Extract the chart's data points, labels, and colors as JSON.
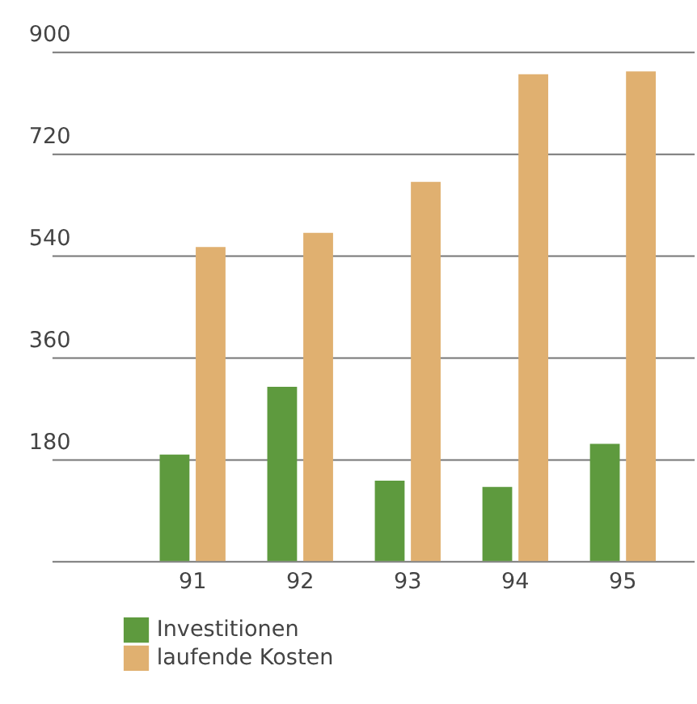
{
  "chart_data": {
    "type": "bar",
    "categories": [
      "91",
      "92",
      "93",
      "94",
      "95"
    ],
    "series": [
      {
        "name": "Investitionen",
        "color": "#5e9a3e",
        "values": [
          188,
          308,
          142,
          131,
          207
        ]
      },
      {
        "name": "laufende Kosten",
        "color": "#e0b070",
        "values": [
          555,
          580,
          670,
          860,
          865
        ]
      }
    ],
    "ylim": [
      0,
      900
    ],
    "yticks": [
      180,
      360,
      540,
      720,
      900
    ],
    "grid": "y",
    "legend": "bottom left"
  }
}
